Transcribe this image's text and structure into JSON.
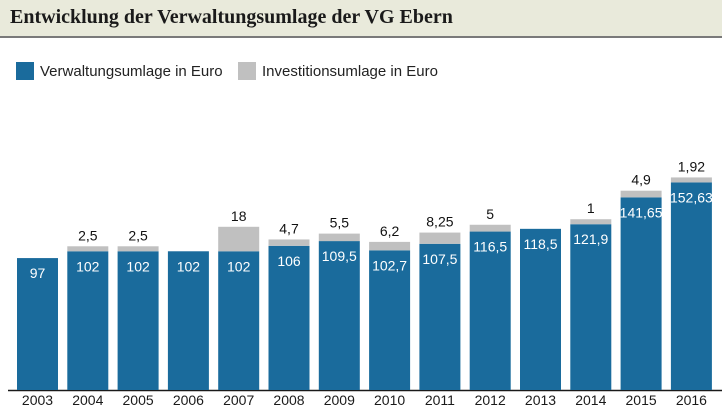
{
  "chart_data": {
    "type": "bar",
    "stacked": true,
    "title": "Entwicklung der Verwaltungsumlage der VG Ebern",
    "categories": [
      "2003",
      "2004",
      "2005",
      "2006",
      "2007",
      "2008",
      "2009",
      "2010",
      "2011",
      "2012",
      "2013",
      "2014",
      "2015",
      "2016"
    ],
    "series": [
      {
        "name": "Verwaltungsumlage in Euro",
        "color": "#1a6b9c",
        "values": [
          97,
          102,
          102,
          102,
          102,
          106,
          109.5,
          102.7,
          107.5,
          116.5,
          118.5,
          121.9,
          141.65,
          152.63
        ],
        "labels": [
          "97",
          "102",
          "102",
          "102",
          "102",
          "106",
          "109,5",
          "102,7",
          "107,5",
          "116,5",
          "118,5",
          "121,9",
          "141,65",
          "152,63"
        ]
      },
      {
        "name": "Investitionsumlage in Euro",
        "color": "#c0c0c0",
        "values": [
          null,
          2.5,
          2.5,
          null,
          18,
          4.7,
          5.5,
          6.2,
          8.25,
          5,
          null,
          1,
          4.9,
          1.92
        ],
        "labels": [
          "",
          "2,5",
          "2,5",
          "",
          "18",
          "4,7",
          "5,5",
          "6,2",
          "8,25",
          "5",
          "",
          "1",
          "4,9",
          "1,92"
        ]
      }
    ],
    "legend_position": "top-left",
    "grid": false
  }
}
